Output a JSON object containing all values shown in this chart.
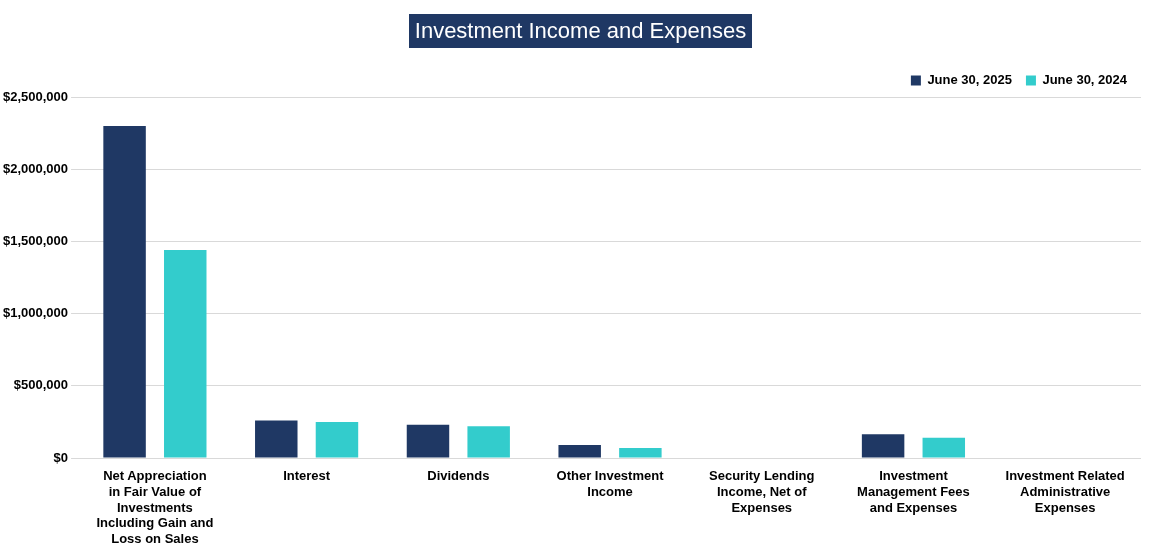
{
  "chart_data": {
    "type": "bar",
    "title": "Investment Income and Expenses",
    "categories": [
      "Net Appreciation in Fair Value of Investments Including Gain and Loss on Sales",
      "Interest",
      "Dividends",
      "Other Investment Income",
      "Security Lending Income, Net of Expenses",
      "Investment Management Fees and Expenses",
      "Investment Related Administrative Expenses"
    ],
    "series": [
      {
        "name": "June 30, 2025",
        "color": "#1f3864",
        "values": [
          2300000,
          260000,
          230000,
          90000,
          null,
          165000,
          null
        ]
      },
      {
        "name": "June 30, 2024",
        "color": "#33cccc",
        "values": [
          1440000,
          250000,
          220000,
          70000,
          null,
          140000,
          null
        ]
      }
    ],
    "ylim": [
      0,
      2500000
    ],
    "yticks": [
      {
        "value": 0,
        "label": "$0"
      },
      {
        "value": 500000,
        "label": "$500,000"
      },
      {
        "value": 1000000,
        "label": "$1,000,000"
      },
      {
        "value": 1500000,
        "label": "$1,500,000"
      },
      {
        "value": 2000000,
        "label": "$2,000,000"
      },
      {
        "value": 2500000,
        "label": "$2,500,000"
      }
    ],
    "grid": "y",
    "legend": "top right"
  }
}
